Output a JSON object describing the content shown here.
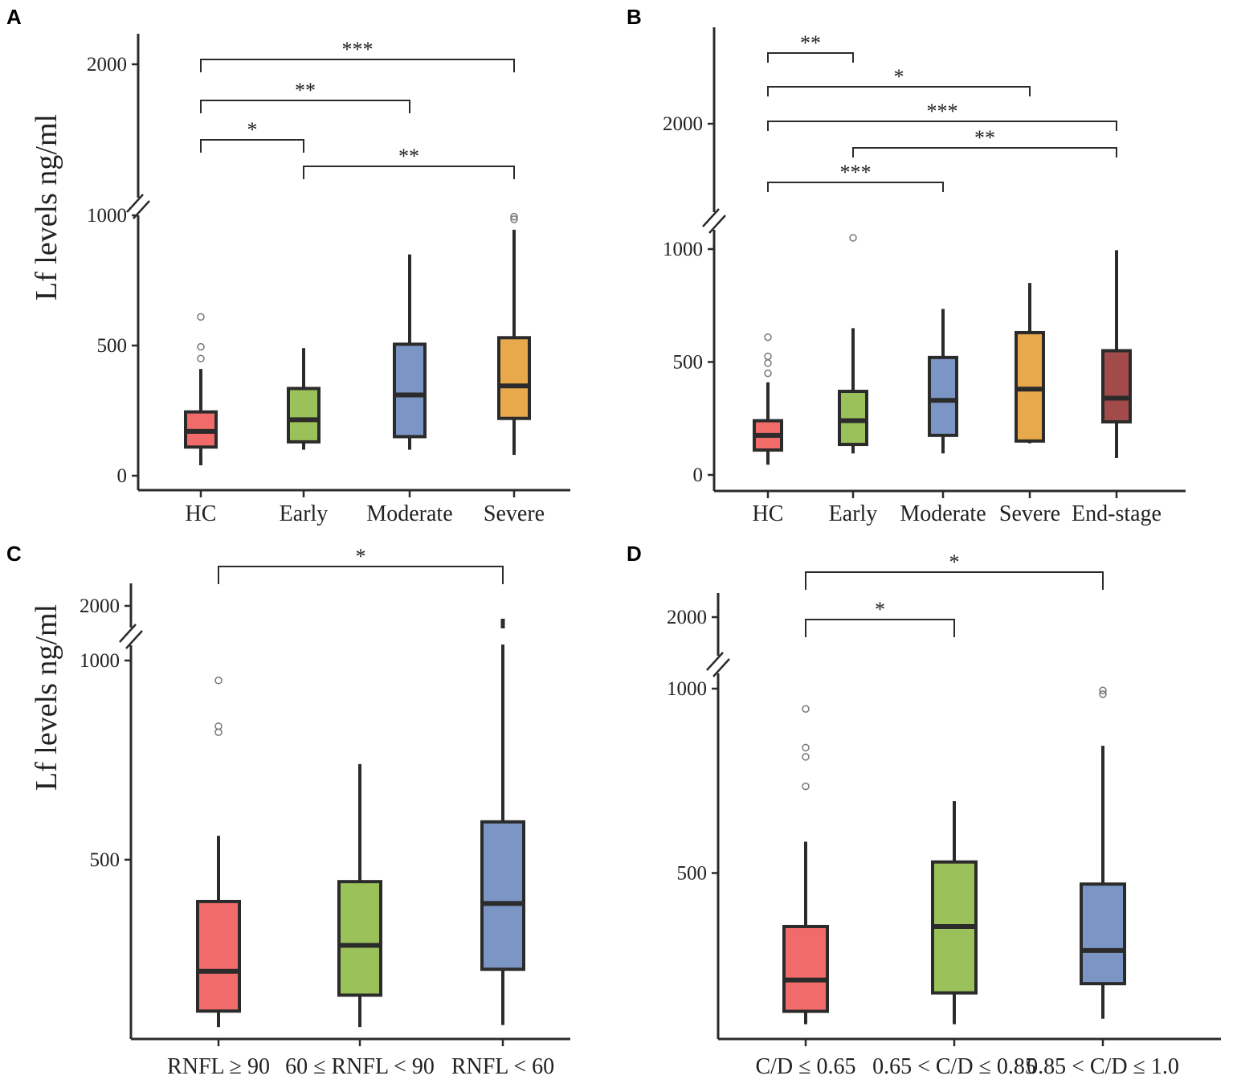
{
  "chart_data": [
    {
      "panel": "A",
      "type": "box",
      "ylabel": "Lf levels ng/ml",
      "yticks_lower": [
        0,
        500,
        1000
      ],
      "yticks_upper": [
        2000
      ],
      "y_axis_break": true,
      "ylim_lower": [
        0,
        1000
      ],
      "categories": [
        "HC",
        "Early",
        "Moderate",
        "Severe"
      ],
      "colors": [
        "#f26b6b",
        "#9bc25a",
        "#7b96c4",
        "#e8a84c"
      ],
      "boxes": [
        {
          "min": 40,
          "q1": 110,
          "median": 170,
          "q3": 245,
          "max": 410,
          "outliers": [
            450,
            495,
            610
          ]
        },
        {
          "min": 100,
          "q1": 130,
          "median": 215,
          "q3": 335,
          "max": 490,
          "outliers": []
        },
        {
          "min": 100,
          "q1": 150,
          "median": 310,
          "q3": 505,
          "max": 850,
          "outliers": []
        },
        {
          "min": 80,
          "q1": 220,
          "median": 345,
          "q3": 530,
          "max": 945,
          "outliers": [
            985,
            995
          ]
        }
      ],
      "comparisons": [
        {
          "from": 0,
          "to": 1,
          "label": "*"
        },
        {
          "from": 1,
          "to": 3,
          "label": "**"
        },
        {
          "from": 0,
          "to": 2,
          "label": "**"
        },
        {
          "from": 0,
          "to": 3,
          "label": "***"
        }
      ]
    },
    {
      "panel": "B",
      "type": "box",
      "ylabel": "",
      "yticks_lower": [
        0,
        500,
        1000
      ],
      "yticks_upper": [
        2000
      ],
      "y_axis_break": true,
      "ylim_lower": [
        0,
        1000
      ],
      "categories": [
        "HC",
        "Early",
        "Moderate",
        "Severe",
        "End-stage"
      ],
      "colors": [
        "#f26b6b",
        "#9bc25a",
        "#7b96c4",
        "#e8a84c",
        "#a34b4b"
      ],
      "boxes": [
        {
          "min": 45,
          "q1": 110,
          "median": 175,
          "q3": 240,
          "max": 410,
          "outliers": [
            450,
            495,
            525,
            610
          ]
        },
        {
          "min": 95,
          "q1": 135,
          "median": 240,
          "q3": 370,
          "max": 650,
          "outliers": [
            1050
          ]
        },
        {
          "min": 95,
          "q1": 175,
          "median": 330,
          "q3": 520,
          "max": 735,
          "outliers": []
        },
        {
          "min": 140,
          "q1": 150,
          "median": 380,
          "q3": 630,
          "max": 850,
          "outliers": []
        },
        {
          "min": 75,
          "q1": 235,
          "median": 340,
          "q3": 550,
          "max": 995,
          "outliers": []
        }
      ],
      "comparisons": [
        {
          "from": 0,
          "to": 2,
          "label": "***"
        },
        {
          "from": 1,
          "to": 4,
          "label": "**"
        },
        {
          "from": 0,
          "to": 4,
          "label": "***"
        },
        {
          "from": 0,
          "to": 3,
          "label": "*"
        },
        {
          "from": 0,
          "to": 1,
          "label": "**"
        }
      ]
    },
    {
      "panel": "C",
      "type": "box",
      "ylabel": "Lf levels ng/ml",
      "yticks_lower": [
        500,
        1000
      ],
      "yticks_upper": [
        2000
      ],
      "y_axis_break": true,
      "ylim_lower": [
        50,
        1000
      ],
      "categories": [
        "RNFL ≥ 90",
        "60 ≤ RNFL < 90",
        "RNFL < 60"
      ],
      "colors": [
        "#f26b6b",
        "#9bc25a",
        "#7b96c4"
      ],
      "boxes": [
        {
          "min": 80,
          "q1": 120,
          "median": 220,
          "q3": 395,
          "max": 560,
          "outliers": [
            820,
            835,
            950
          ]
        },
        {
          "min": 80,
          "q1": 160,
          "median": 285,
          "q3": 445,
          "max": 740,
          "outliers": []
        },
        {
          "min": 85,
          "q1": 225,
          "median": 390,
          "q3": 595,
          "max": 1040,
          "outliers": []
        }
      ],
      "comparisons": [
        {
          "from": 0,
          "to": 2,
          "label": "*"
        }
      ]
    },
    {
      "panel": "D",
      "type": "box",
      "ylabel": "",
      "yticks_lower": [
        500,
        1000
      ],
      "yticks_upper": [
        2000
      ],
      "y_axis_break": true,
      "ylim_lower": [
        50,
        1000
      ],
      "categories": [
        "C/D ≤ 0.65",
        "0.65 < C/D ≤ 0.85",
        "0.85 < C/D ≤ 1.0"
      ],
      "colors": [
        "#f26b6b",
        "#9bc25a",
        "#7b96c4"
      ],
      "boxes": [
        {
          "min": 90,
          "q1": 125,
          "median": 210,
          "q3": 355,
          "max": 585,
          "outliers": [
            735,
            815,
            840,
            945
          ]
        },
        {
          "min": 90,
          "q1": 175,
          "median": 355,
          "q3": 530,
          "max": 695,
          "outliers": []
        },
        {
          "min": 105,
          "q1": 200,
          "median": 290,
          "q3": 470,
          "max": 845,
          "outliers": [
            985,
            995
          ]
        }
      ],
      "comparisons": [
        {
          "from": 0,
          "to": 1,
          "label": "*"
        },
        {
          "from": 0,
          "to": 2,
          "label": "*"
        }
      ]
    }
  ]
}
